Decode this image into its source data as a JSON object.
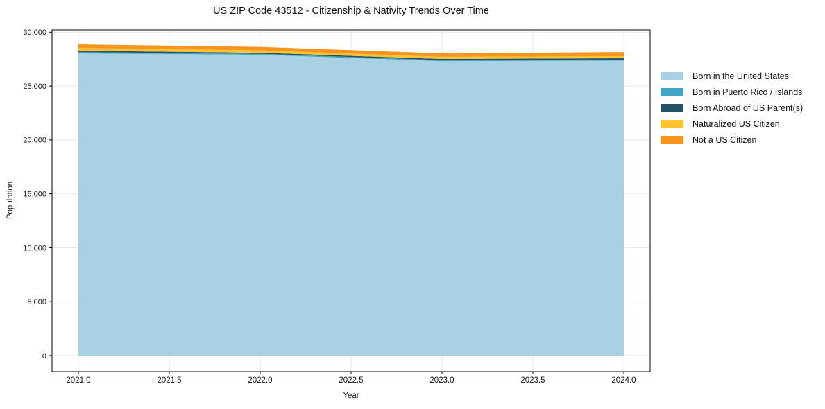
{
  "chart_data": {
    "type": "area",
    "stacked": true,
    "title": "US ZIP Code 43512 - Citizenship & Nativity Trends Over Time",
    "xlabel": "Year",
    "ylabel": "Population",
    "x": [
      2021,
      2022,
      2023,
      2024
    ],
    "series": [
      {
        "name": "Born in the United States",
        "color": "#a8d2e3",
        "values": [
          28020,
          27890,
          27305,
          27350
        ]
      },
      {
        "name": "Born in Puerto Rico / Islands",
        "color": "#41a6c4",
        "values": [
          130,
          100,
          100,
          95
        ]
      },
      {
        "name": "Born Abroad of US Parent(s)",
        "color": "#265066",
        "values": [
          130,
          95,
          110,
          130
        ]
      },
      {
        "name": "Naturalized US Citizen",
        "color": "#fcc330",
        "values": [
          255,
          225,
          195,
          190
        ]
      },
      {
        "name": "Not a US Citizen",
        "color": "#f6941e",
        "values": [
          320,
          320,
          315,
          385
        ]
      }
    ],
    "x_ticks": [
      {
        "v": 2021.0,
        "label": "2021.0"
      },
      {
        "v": 2021.5,
        "label": "2021.5"
      },
      {
        "v": 2022.0,
        "label": "2022.0"
      },
      {
        "v": 2022.5,
        "label": "2022.5"
      },
      {
        "v": 2023.0,
        "label": "2023.0"
      },
      {
        "v": 2023.5,
        "label": "2023.5"
      },
      {
        "v": 2024.0,
        "label": "2024.0"
      }
    ],
    "y_ticks": [
      {
        "v": 0,
        "label": "0"
      },
      {
        "v": 5000,
        "label": "5,000"
      },
      {
        "v": 10000,
        "label": "10,000"
      },
      {
        "v": 15000,
        "label": "15,000"
      },
      {
        "v": 20000,
        "label": "20,000"
      },
      {
        "v": 25000,
        "label": "25,000"
      },
      {
        "v": 30000,
        "label": "30,000"
      }
    ],
    "xlim": [
      2020.855,
      2024.145
    ],
    "ylim": [
      0,
      30000
    ],
    "grid": true,
    "legend_position": "right-outside",
    "legend_frame": false,
    "grid_color": "#e7e7e7",
    "spine_color": "#000000"
  }
}
